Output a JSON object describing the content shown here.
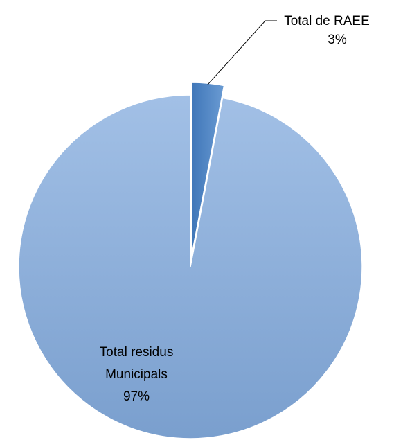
{
  "chart_data": {
    "type": "pie",
    "title": "",
    "legend": "none",
    "slices": [
      {
        "label_lines": [
          "Total de RAEE",
          "3%"
        ],
        "value": 3,
        "color": "#4f86c6",
        "exploded": true
      },
      {
        "label_lines": [
          "Total residus",
          "Municipals",
          "97%"
        ],
        "value": 97,
        "color": "#8eb1dc",
        "exploded": false
      }
    ]
  }
}
